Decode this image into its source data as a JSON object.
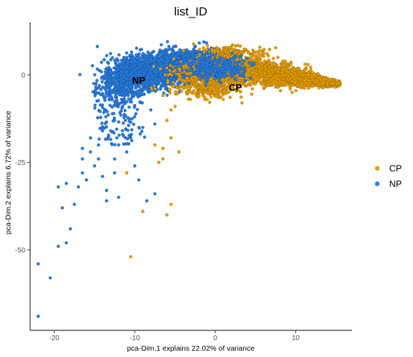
{
  "chart_data": {
    "type": "scatter",
    "title": "list_ID",
    "xlabel": "pca-Dim.1 explains 22.02% of variance",
    "ylabel": "pca-Dim.2 explains 6.72% of variance",
    "xlim": [
      -23,
      17
    ],
    "ylim": [
      -73,
      15
    ],
    "x_ticks": [
      -20,
      -10,
      0,
      10
    ],
    "y_ticks": [
      0,
      -25,
      -50
    ],
    "x_tick_labels": [
      "-20",
      "-10",
      "0",
      "10"
    ],
    "y_tick_labels": [
      "0",
      "-25",
      "-50"
    ],
    "grid": false,
    "legend_position": "right",
    "series": [
      {
        "name": "CP",
        "color": "#E69F00",
        "cluster_label": "CP",
        "centroid": [
          2.5,
          -3.5
        ],
        "points": [
          [
            -10.5,
            -52
          ],
          [
            -5.5,
            -37
          ],
          [
            -9,
            -39
          ],
          [
            -6,
            -40
          ],
          [
            -11,
            -28
          ],
          [
            -7,
            -25
          ],
          [
            -6.5,
            -24
          ],
          [
            -4.5,
            -22
          ],
          [
            -6.5,
            -21
          ],
          [
            -7.5,
            -20
          ],
          [
            -5.5,
            -18
          ],
          [
            -6,
            -13
          ],
          [
            -5.5,
            -10
          ],
          [
            -5,
            -9
          ],
          [
            -3.5,
            -5
          ],
          [
            -2,
            -6
          ],
          [
            -1,
            -7
          ],
          [
            0.5,
            -6
          ],
          [
            1,
            -7
          ],
          [
            -1.5,
            -6
          ],
          [
            12,
            -0.5
          ],
          [
            13.5,
            -2
          ],
          [
            14.5,
            -2.5
          ]
        ]
      },
      {
        "name": "NP",
        "color": "#2A7DE1",
        "cluster_label": "NP",
        "centroid": [
          -9.5,
          -1.5
        ],
        "points": [
          [
            -22,
            -54
          ],
          [
            -22,
            -69
          ],
          [
            -20.5,
            -58
          ],
          [
            -19.5,
            -49
          ],
          [
            -18.5,
            -48
          ],
          [
            -19,
            -38
          ],
          [
            -18,
            -44
          ],
          [
            -19.5,
            -32
          ],
          [
            -18.5,
            -31
          ],
          [
            -17.5,
            -37
          ],
          [
            -17,
            -32
          ],
          [
            -16.5,
            -28
          ],
          [
            -16,
            -30
          ],
          [
            -16.5,
            -24
          ],
          [
            -15.5,
            -22
          ],
          [
            -16.5,
            -21
          ],
          [
            -15.5,
            -18
          ],
          [
            -14.5,
            -20
          ],
          [
            -14.5,
            -24
          ],
          [
            -15,
            -26
          ],
          [
            -14,
            -29
          ],
          [
            -13.5,
            -33
          ],
          [
            -13.5,
            -36
          ],
          [
            -12.5,
            -28
          ],
          [
            -12,
            -35
          ],
          [
            -12.5,
            -24
          ],
          [
            -12,
            -20
          ],
          [
            -13,
            -16
          ],
          [
            -14,
            -16
          ],
          [
            -12.5,
            -13
          ],
          [
            -11.5,
            -17
          ],
          [
            -11,
            -22
          ],
          [
            -10,
            -26
          ],
          [
            -8.5,
            -36
          ],
          [
            -9.5,
            -30
          ],
          [
            -7.5,
            -34
          ],
          [
            -8,
            -10
          ],
          [
            -7.5,
            -14
          ],
          [
            -9,
            -15
          ]
        ]
      }
    ],
    "dense_regions": [
      {
        "series": "NP",
        "shape": "ellipse",
        "cx": -8,
        "cy": 1,
        "rx": 4.5,
        "ry": 4.5,
        "n": 1400,
        "spread": 1.0
      },
      {
        "series": "NP",
        "shape": "ellipse",
        "cx": -3,
        "cy": 4,
        "rx": 5,
        "ry": 3.5,
        "n": 900,
        "spread": 1.0
      },
      {
        "series": "NP",
        "shape": "ellipse",
        "cx": -11.5,
        "cy": -3,
        "rx": 2.8,
        "ry": 5.5,
        "n": 350,
        "spread": 1.0
      },
      {
        "series": "NP",
        "shape": "wedge",
        "x_from": -14.5,
        "x_to": -9.5,
        "y_from": -4,
        "y_to": -20,
        "n": 120
      },
      {
        "series": "CP",
        "shape": "ellipse",
        "cx": 2,
        "cy": 1,
        "rx": 6.5,
        "ry": 3.3,
        "n": 1400,
        "spread": 1.0
      },
      {
        "series": "CP",
        "shape": "band",
        "x_from": 6,
        "x_to": 15.5,
        "y_from": 0.5,
        "y_to": -2.5,
        "half_width_from": 3.5,
        "half_width_to": 0.6,
        "n": 1300
      },
      {
        "series": "CP",
        "shape": "ellipse",
        "cx": -1,
        "cy": -3.5,
        "rx": 4.5,
        "ry": 3,
        "n": 300,
        "spread": 1.0
      },
      {
        "series": "CP",
        "shape": "ellipse",
        "cx": 2,
        "cy": 6,
        "rx": 4,
        "ry": 2.5,
        "n": 200,
        "spread": 1.0
      },
      {
        "series": "NP",
        "shape": "ellipse",
        "cx": 0,
        "cy": 2,
        "rx": 4,
        "ry": 3.5,
        "n": 350,
        "spread": 1.0
      }
    ]
  }
}
